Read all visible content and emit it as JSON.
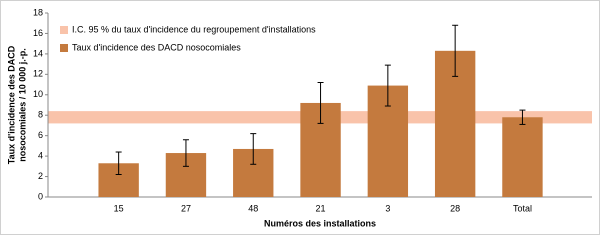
{
  "chart_data": {
    "type": "bar",
    "x_label": "Numéros des installations",
    "y_label": [
      "Taux d'incidence des DACD",
      "nosocomiales / 10 000 j.-p."
    ],
    "categories": [
      "15",
      "27",
      "48",
      "21",
      "3",
      "28",
      "Total"
    ],
    "series": [
      {
        "name": "Taux d'incidence des DACD nosocomiales",
        "color": "#c47a3e",
        "values": [
          3.3,
          4.3,
          4.7,
          9.2,
          10.9,
          14.3,
          7.8
        ],
        "errors": [
          1.1,
          1.3,
          1.5,
          2.0,
          2.0,
          2.5,
          0.7
        ]
      }
    ],
    "band": {
      "name": "I.C. 95 % du taux d'incidence du regroupement d'installations",
      "color": "#f9c3aa",
      "range": [
        7.2,
        8.4
      ]
    },
    "ylim": [
      0,
      18
    ],
    "yticks": [
      0,
      2,
      4,
      6,
      8,
      10,
      12,
      14,
      16,
      18
    ]
  }
}
